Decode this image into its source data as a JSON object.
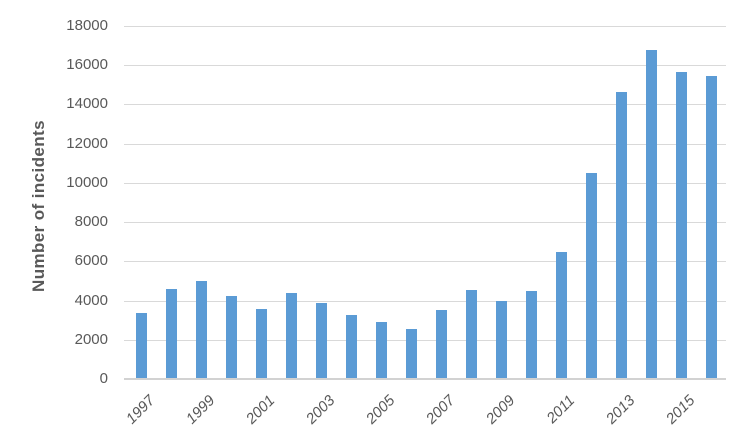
{
  "window": {
    "background": "#ffffff"
  },
  "chart_data": {
    "type": "bar",
    "title": "",
    "xlabel": "",
    "ylabel": "Number of incidents",
    "categories": [
      "1997",
      "1998",
      "1999",
      "2000",
      "2001",
      "2002",
      "2003",
      "2004",
      "2005",
      "2006",
      "2007",
      "2008",
      "2009",
      "2010",
      "2011",
      "2012",
      "2013",
      "2014",
      "2015",
      "2016"
    ],
    "values": [
      3350,
      4600,
      5000,
      4250,
      3550,
      4400,
      3850,
      3250,
      2900,
      2550,
      3500,
      4550,
      4000,
      4500,
      6500,
      10500,
      14650,
      16800,
      15650,
      15450
    ],
    "ylim": [
      0,
      18000
    ],
    "yticks": [
      0,
      2000,
      4000,
      6000,
      8000,
      10000,
      12000,
      14000,
      16000,
      18000
    ],
    "xtick_labels": [
      "1997",
      "1999",
      "2001",
      "2003",
      "2005",
      "2007",
      "2009",
      "2011",
      "2013",
      "2015"
    ],
    "grid": "horizontal",
    "legend": "none",
    "colors": {
      "bar": "#5B9BD5",
      "gridline": "#D9D9D9",
      "axis_line": "#D2D2D2",
      "tick_text": "#595959",
      "axis_title_text": "#595959"
    }
  }
}
